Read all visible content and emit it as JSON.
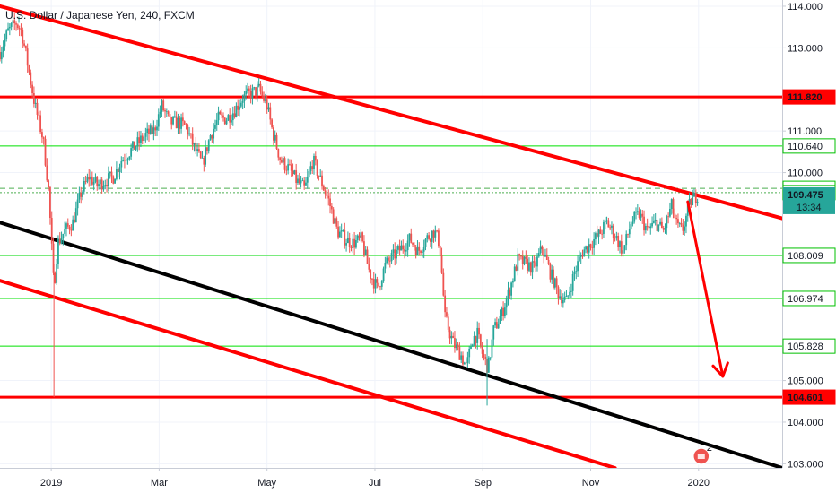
{
  "chart_data": {
    "type": "candlestick",
    "title": "U.S. Dollar / Japanese Yen, 240, FXCM",
    "ylim": [
      102.9,
      114.15
    ],
    "y_ticks": [
      "114.000",
      "113.000",
      "111.000",
      "110.000",
      "108.000",
      "106.974",
      "105.000",
      "104.000",
      "103.000"
    ],
    "x_ticks": [
      "2019",
      "Mar",
      "May",
      "Jul",
      "Sep",
      "Nov",
      "2020"
    ],
    "x_tick_months": [
      0,
      2,
      4,
      6,
      8,
      10,
      12
    ],
    "month_range": [
      -0.95,
      13.55
    ],
    "price_path": [
      [
        -0.95,
        112.9
      ],
      [
        -0.8,
        113.4
      ],
      [
        -0.65,
        113.6
      ],
      [
        -0.55,
        113.4
      ],
      [
        -0.45,
        112.7
      ],
      [
        -0.3,
        111.6
      ],
      [
        -0.15,
        110.8
      ],
      [
        -0.05,
        109.6
      ],
      [
        0.05,
        107.2
      ],
      [
        0.12,
        108.3
      ],
      [
        0.25,
        108.6
      ],
      [
        0.4,
        108.8
      ],
      [
        0.55,
        109.5
      ],
      [
        0.7,
        109.9
      ],
      [
        0.85,
        109.7
      ],
      [
        1.0,
        109.8
      ],
      [
        1.15,
        109.9
      ],
      [
        1.3,
        110.3
      ],
      [
        1.45,
        110.5
      ],
      [
        1.6,
        110.7
      ],
      [
        1.75,
        110.9
      ],
      [
        1.9,
        111.0
      ],
      [
        2.05,
        111.6
      ],
      [
        2.2,
        111.2
      ],
      [
        2.35,
        111.2
      ],
      [
        2.5,
        111.1
      ],
      [
        2.65,
        110.6
      ],
      [
        2.8,
        110.2
      ],
      [
        2.95,
        110.9
      ],
      [
        3.1,
        111.3
      ],
      [
        3.25,
        111.3
      ],
      [
        3.4,
        111.5
      ],
      [
        3.55,
        111.8
      ],
      [
        3.7,
        111.9
      ],
      [
        3.85,
        112.0
      ],
      [
        4.0,
        111.6
      ],
      [
        4.1,
        111.0
      ],
      [
        4.25,
        110.3
      ],
      [
        4.4,
        110.1
      ],
      [
        4.55,
        109.8
      ],
      [
        4.7,
        109.6
      ],
      [
        4.85,
        110.3
      ],
      [
        5.0,
        109.8
      ],
      [
        5.15,
        109.3
      ],
      [
        5.3,
        108.6
      ],
      [
        5.45,
        108.4
      ],
      [
        5.6,
        108.3
      ],
      [
        5.75,
        108.4
      ],
      [
        5.9,
        107.6
      ],
      [
        6.05,
        107.2
      ],
      [
        6.2,
        107.8
      ],
      [
        6.35,
        108.0
      ],
      [
        6.5,
        108.2
      ],
      [
        6.65,
        108.4
      ],
      [
        6.8,
        108.1
      ],
      [
        6.95,
        108.4
      ],
      [
        7.1,
        108.6
      ],
      [
        7.2,
        108.3
      ],
      [
        7.3,
        106.5
      ],
      [
        7.45,
        105.9
      ],
      [
        7.6,
        105.6
      ],
      [
        7.7,
        105.3
      ],
      [
        7.8,
        106.0
      ],
      [
        7.9,
        106.1
      ],
      [
        8.0,
        105.6
      ],
      [
        8.1,
        105.3
      ],
      [
        8.2,
        106.2
      ],
      [
        8.35,
        106.6
      ],
      [
        8.5,
        107.2
      ],
      [
        8.65,
        107.9
      ],
      [
        8.8,
        107.8
      ],
      [
        8.95,
        107.7
      ],
      [
        9.1,
        108.2
      ],
      [
        9.25,
        107.6
      ],
      [
        9.4,
        107.1
      ],
      [
        9.55,
        106.9
      ],
      [
        9.7,
        107.6
      ],
      [
        9.85,
        108.1
      ],
      [
        10.0,
        108.3
      ],
      [
        10.15,
        108.5
      ],
      [
        10.3,
        108.8
      ],
      [
        10.45,
        108.5
      ],
      [
        10.6,
        108.1
      ],
      [
        10.75,
        108.8
      ],
      [
        10.9,
        109.0
      ],
      [
        11.05,
        108.6
      ],
      [
        11.2,
        108.8
      ],
      [
        11.35,
        108.6
      ],
      [
        11.5,
        109.2
      ],
      [
        11.6,
        108.7
      ],
      [
        11.7,
        108.6
      ],
      [
        11.85,
        109.3
      ],
      [
        12.0,
        109.5
      ]
    ],
    "horizontal_levels": [
      {
        "value": 111.82,
        "label": "111.820",
        "color": "#ff0000",
        "style": "thick",
        "box": "red"
      },
      {
        "value": 110.64,
        "label": "110.640",
        "color": "#00e000",
        "style": "thin",
        "box": "green-outline"
      },
      {
        "value": 109.622,
        "label": "109.622",
        "color": "#4caf50",
        "style": "dashed",
        "box": "green-outline"
      },
      {
        "value": 109.519,
        "label": "109.519",
        "color": "#4caf50",
        "style": "dotted",
        "box": "green-outline"
      },
      {
        "value": 108.009,
        "label": "108.009",
        "color": "#00e000",
        "style": "thin",
        "box": "green-outline"
      },
      {
        "value": 106.974,
        "label": "106.974",
        "color": "#00e000",
        "style": "thin",
        "box": "green-outline"
      },
      {
        "value": 105.828,
        "label": "105.828",
        "color": "#00e000",
        "style": "thin",
        "box": "green-outline"
      },
      {
        "value": 104.601,
        "label": "104.601",
        "color": "#ff0000",
        "style": "thick",
        "box": "red"
      }
    ],
    "current_price": {
      "label": "109.475",
      "countdown": "13:34",
      "value": 109.475,
      "color": "#26a69a"
    },
    "trend_lines": [
      {
        "from": [
          -0.95,
          114.0
        ],
        "to": [
          13.55,
          108.9
        ],
        "color": "#ff0000"
      },
      {
        "from": [
          -0.95,
          108.8
        ],
        "to": [
          13.55,
          102.9
        ],
        "color": "#000000"
      },
      {
        "from": [
          -0.95,
          107.4
        ],
        "to": [
          10.45,
          102.9
        ],
        "color": "#ff0000"
      }
    ],
    "arrow": {
      "from": [
        11.8,
        109.3
      ],
      "to": [
        12.45,
        105.1
      ],
      "color": "#ff0000"
    },
    "event_badge": {
      "month": 12.05,
      "count": "2"
    }
  }
}
